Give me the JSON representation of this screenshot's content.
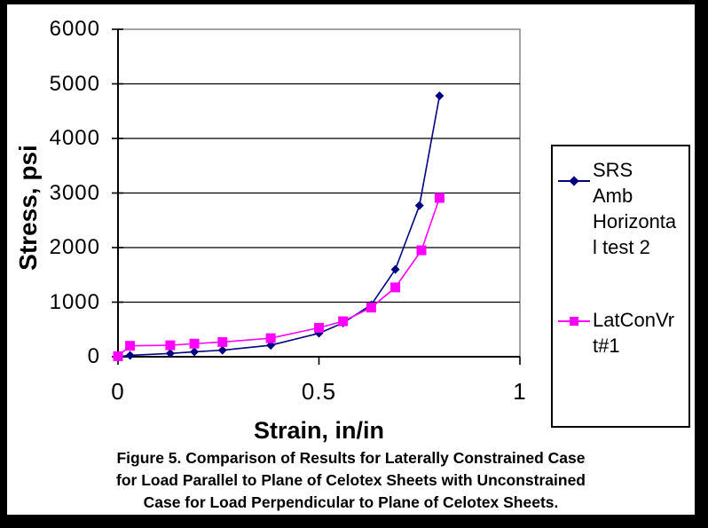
{
  "chart_data": {
    "type": "line",
    "title": "",
    "xlabel": "Strain, in/in",
    "ylabel": "Stress, psi",
    "xlim": [
      0,
      1
    ],
    "ylim": [
      0,
      6000
    ],
    "x_ticks": [
      0,
      0.5,
      1
    ],
    "x_tick_labels": [
      "0",
      "0.5",
      "1"
    ],
    "y_ticks": [
      0,
      1000,
      2000,
      3000,
      4000,
      5000,
      6000
    ],
    "y_tick_labels": [
      "0",
      "1000",
      "2000",
      "3000",
      "4000",
      "5000",
      "6000"
    ],
    "grid": true,
    "legend_position": "right",
    "plot_border_color": "#8c8c8c",
    "gridline_color": "#000000",
    "axis_color": "#000000",
    "series": [
      {
        "name": "SRS Amb Horizontal test 2",
        "label_lines": [
          "SRS",
          "Amb",
          "Horizonta",
          "l test 2"
        ],
        "color": "#000080",
        "marker": "diamond",
        "x": [
          0,
          0.03,
          0.13,
          0.19,
          0.26,
          0.38,
          0.5,
          0.56,
          0.63,
          0.69,
          0.75,
          0.8
        ],
        "y": [
          0,
          25,
          60,
          90,
          120,
          210,
          430,
          620,
          950,
          1600,
          2770,
          4780
        ]
      },
      {
        "name": "LatConVrt#1",
        "label_lines": [
          "LatConVr",
          "t#1"
        ],
        "color": "#FF00FF",
        "marker": "square",
        "x": [
          0,
          0.03,
          0.13,
          0.19,
          0.26,
          0.38,
          0.5,
          0.56,
          0.63,
          0.69,
          0.755,
          0.8
        ],
        "y": [
          10,
          200,
          210,
          240,
          270,
          340,
          530,
          650,
          900,
          1270,
          1950,
          2910
        ]
      }
    ]
  },
  "caption": {
    "line1": "Figure 5. Comparison of Results for Laterally Constrained Case",
    "line2": "for Load Parallel to Plane of Celotex Sheets with Unconstrained",
    "line3": "Case for Load Perpendicular to Plane of Celotex Sheets."
  }
}
